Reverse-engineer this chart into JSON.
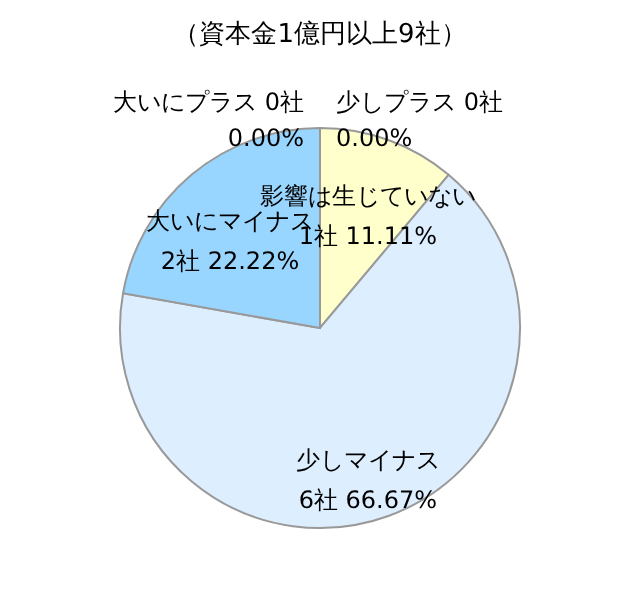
{
  "chart_data": {
    "type": "pie",
    "title": "（資本金1億円以上9社）",
    "categories": [
      "少しプラス",
      "影響は生じていない",
      "少しマイナス",
      "大いにマイナス",
      "大いにプラス"
    ],
    "values": [
      0,
      1,
      6,
      2,
      0
    ],
    "value_labels": [
      "0社 0.00%",
      "1社 11.11%",
      "6社 66.67%",
      "2社 22.22%",
      "0社 0.00%"
    ],
    "colors": [
      "#fff2cc",
      "#ffffcc",
      "#ddeeff",
      "#99d6ff",
      "#4da6ff"
    ],
    "legend": false
  }
}
